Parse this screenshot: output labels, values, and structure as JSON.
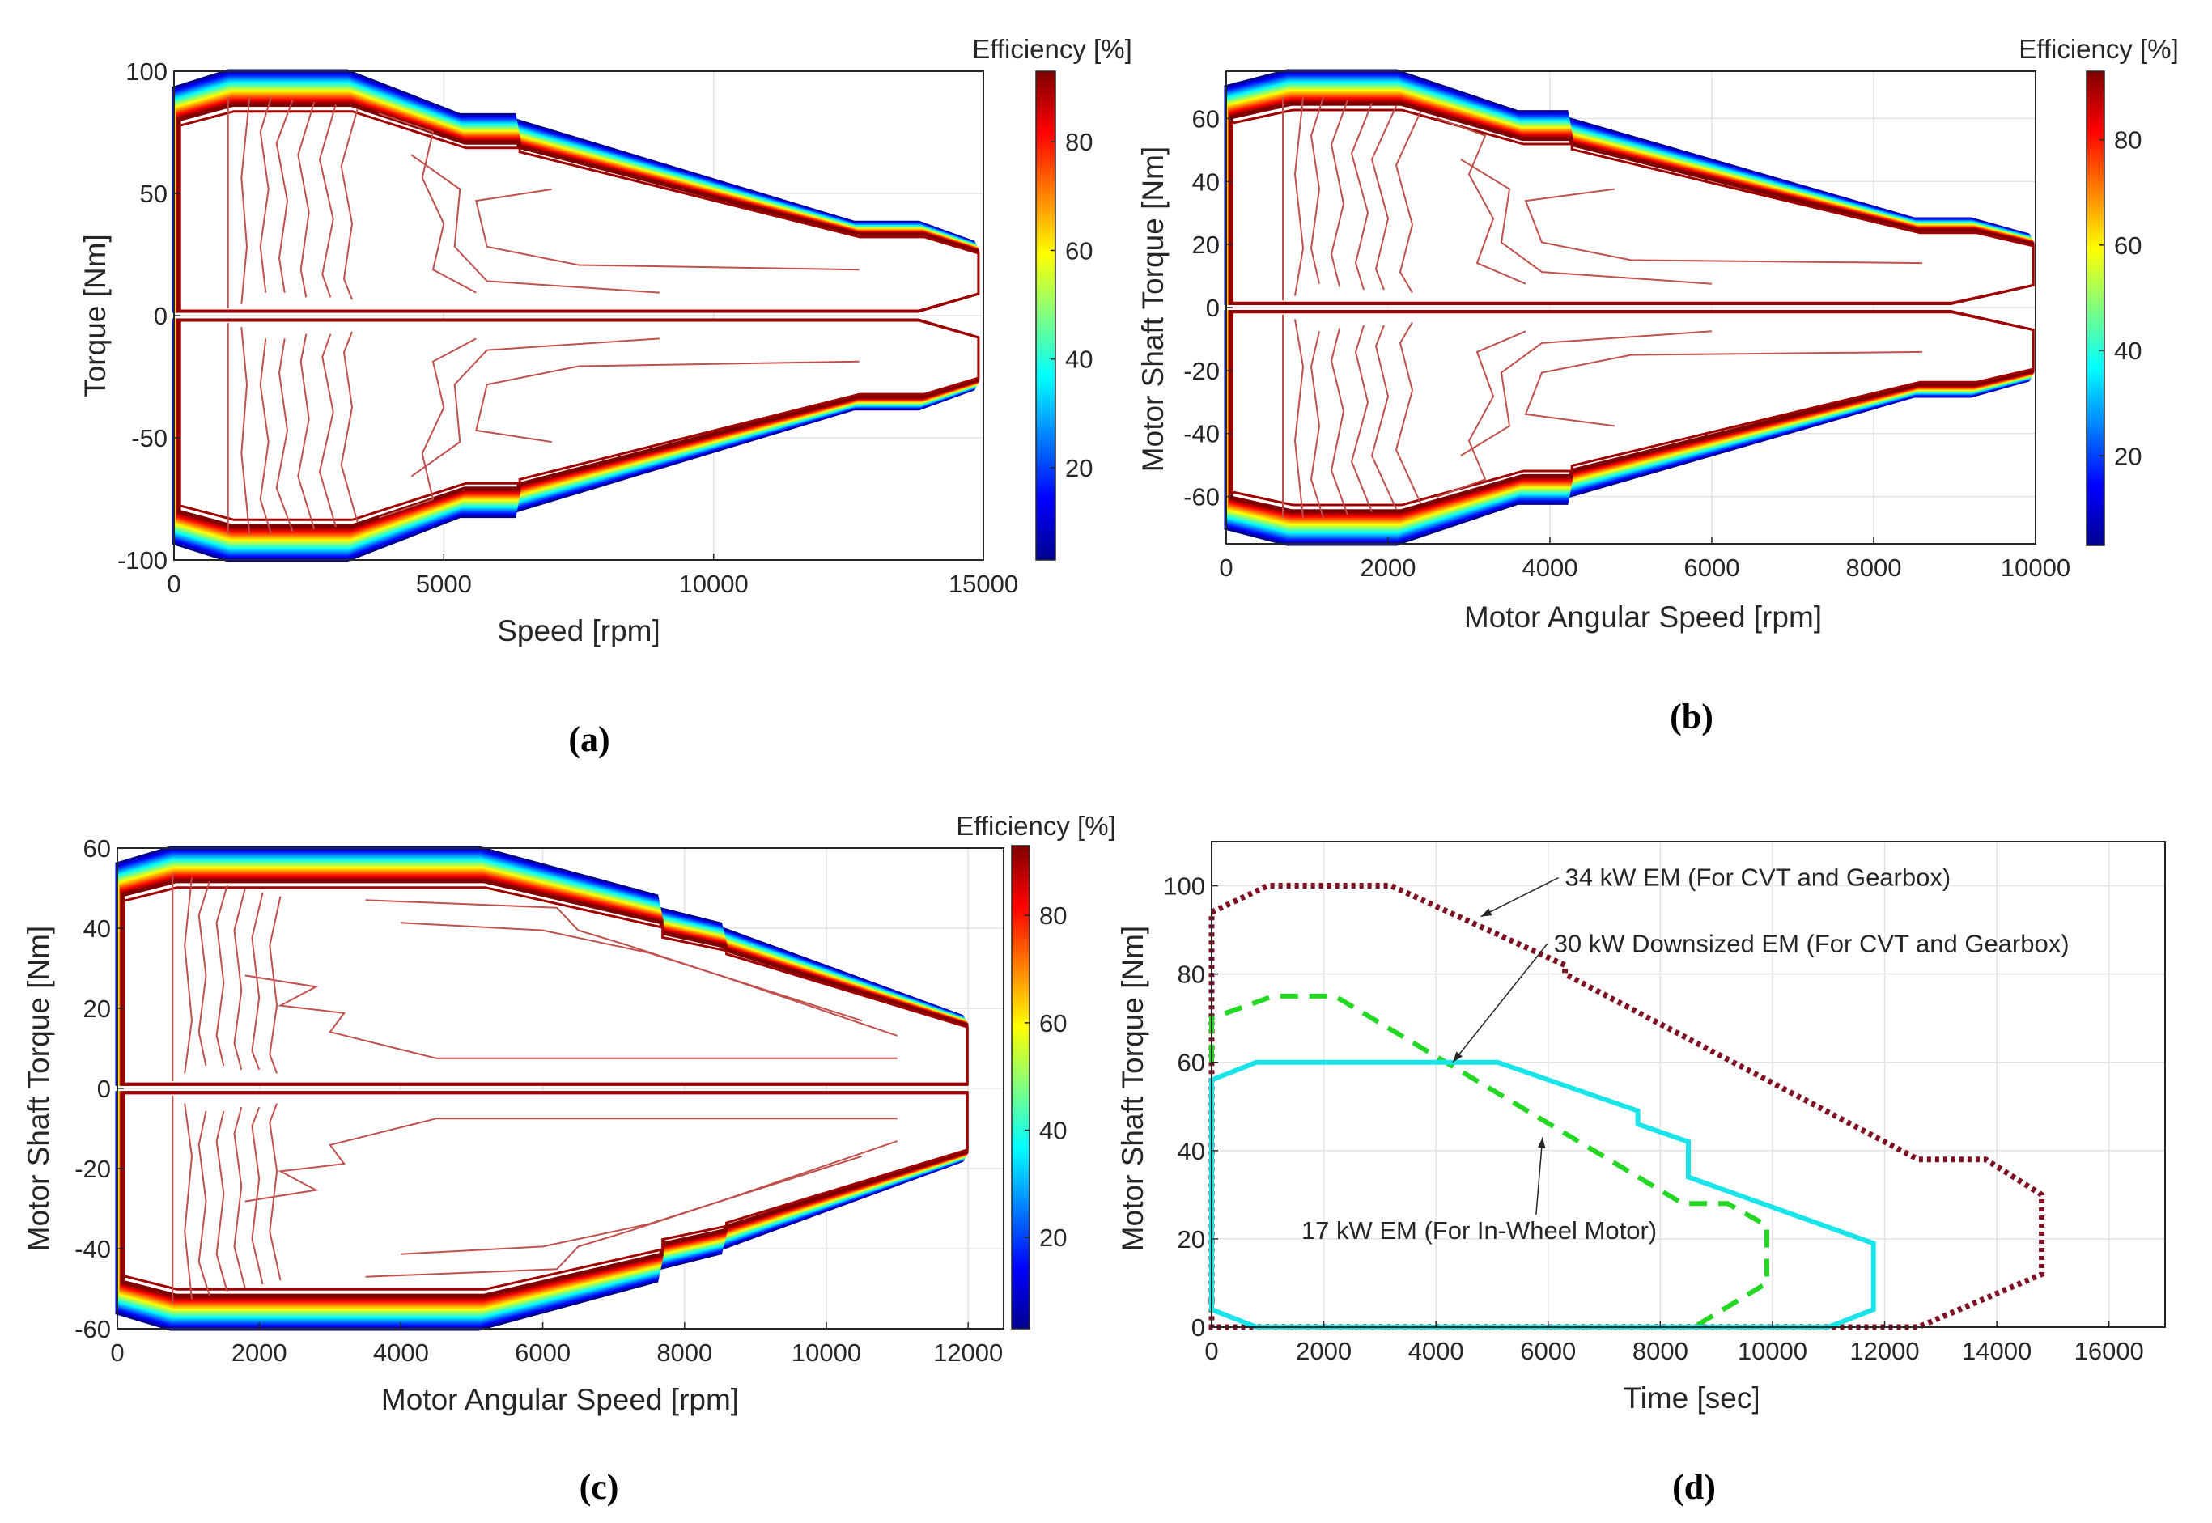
{
  "chart_data": [
    {
      "type": "heatmap",
      "subtype": "efficiency-map",
      "caption": "(a)",
      "xlabel": "Speed [rpm]",
      "ylabel": "Torque [Nm]",
      "xlim": [
        0,
        15000
      ],
      "ylim": [
        -100,
        100
      ],
      "xticks": [
        "0",
        "5000",
        "10000",
        "15000"
      ],
      "yticks": [
        "-100",
        "-50",
        "0",
        "50",
        "100"
      ],
      "grid": true,
      "colorbar": {
        "title": "Efficiency [%]",
        "range": [
          3,
          93
        ],
        "ticks": [
          "20",
          "40",
          "60",
          "80"
        ]
      },
      "envelope": [
        [
          0,
          93
        ],
        [
          1000,
          100
        ],
        [
          3200,
          100
        ],
        [
          5300,
          82
        ],
        [
          6300,
          82
        ],
        [
          6300,
          80
        ],
        [
          12600,
          38
        ],
        [
          13800,
          38
        ],
        [
          14800,
          30
        ],
        [
          14800,
          10
        ],
        [
          13700,
          0
        ]
      ],
      "contours": [
        [
          [
            1000,
            95
          ],
          [
            1000,
            45
          ],
          [
            1000,
            0
          ]
        ],
        [
          [
            1400,
            95
          ],
          [
            1250,
            60
          ],
          [
            1350,
            30
          ],
          [
            1250,
            5
          ]
        ],
        [
          [
            1800,
            95
          ],
          [
            1600,
            80
          ],
          [
            1750,
            55
          ],
          [
            1600,
            30
          ],
          [
            1700,
            10
          ]
        ],
        [
          [
            2200,
            94
          ],
          [
            1900,
            75
          ],
          [
            2100,
            50
          ],
          [
            1950,
            25
          ],
          [
            2050,
            10
          ]
        ],
        [
          [
            2600,
            93
          ],
          [
            2300,
            70
          ],
          [
            2500,
            45
          ],
          [
            2350,
            20
          ],
          [
            2450,
            8
          ]
        ],
        [
          [
            3000,
            92
          ],
          [
            2700,
            68
          ],
          [
            2950,
            42
          ],
          [
            2750,
            18
          ],
          [
            2900,
            8
          ]
        ],
        [
          [
            3400,
            90
          ],
          [
            3100,
            65
          ],
          [
            3300,
            40
          ],
          [
            3150,
            16
          ],
          [
            3300,
            7
          ]
        ],
        [
          [
            3800,
            88
          ],
          [
            4800,
            80
          ],
          [
            4600,
            60
          ],
          [
            5000,
            40
          ],
          [
            4800,
            20
          ],
          [
            5600,
            10
          ]
        ],
        [
          [
            4400,
            70
          ],
          [
            5300,
            55
          ],
          [
            5200,
            30
          ],
          [
            5800,
            15
          ],
          [
            9000,
            10
          ]
        ],
        [
          [
            7000,
            55
          ],
          [
            5600,
            50
          ],
          [
            5800,
            30
          ],
          [
            7500,
            22
          ],
          [
            12700,
            20
          ]
        ]
      ]
    },
    {
      "type": "heatmap",
      "subtype": "efficiency-map",
      "caption": "(b)",
      "xlabel": "Motor Angular Speed [rpm]",
      "ylabel": "Motor Shaft Torque [Nm]",
      "xlim": [
        0,
        10000
      ],
      "ylim": [
        -75,
        75
      ],
      "xticks": [
        "0",
        "2000",
        "4000",
        "6000",
        "8000",
        "10000"
      ],
      "yticks": [
        "-60",
        "-40",
        "-20",
        "0",
        "20",
        "40",
        "60"
      ],
      "grid": true,
      "colorbar": {
        "title": "Efficiency [%]",
        "range": [
          3,
          93
        ],
        "ticks": [
          "20",
          "40",
          "60",
          "80"
        ]
      },
      "envelope": [
        [
          0,
          70
        ],
        [
          750,
          75
        ],
        [
          2100,
          75
        ],
        [
          3600,
          62
        ],
        [
          4200,
          62
        ],
        [
          4200,
          60
        ],
        [
          8500,
          28
        ],
        [
          9200,
          28
        ],
        [
          9900,
          23
        ],
        [
          9900,
          8
        ],
        [
          8900,
          0
        ]
      ],
      "contours": [
        [
          [
            700,
            71
          ],
          [
            700,
            35
          ],
          [
            700,
            0
          ]
        ],
        [
          [
            950,
            71
          ],
          [
            850,
            45
          ],
          [
            950,
            20
          ],
          [
            850,
            4
          ]
        ],
        [
          [
            1200,
            71
          ],
          [
            1050,
            58
          ],
          [
            1150,
            40
          ],
          [
            1050,
            20
          ],
          [
            1150,
            8
          ]
        ],
        [
          [
            1500,
            70
          ],
          [
            1300,
            55
          ],
          [
            1450,
            35
          ],
          [
            1300,
            18
          ],
          [
            1400,
            7
          ]
        ],
        [
          [
            1800,
            69
          ],
          [
            1550,
            52
          ],
          [
            1750,
            32
          ],
          [
            1600,
            15
          ],
          [
            1700,
            6
          ]
        ],
        [
          [
            2100,
            68
          ],
          [
            1800,
            50
          ],
          [
            2000,
            30
          ],
          [
            1850,
            13
          ],
          [
            1950,
            6
          ]
        ],
        [
          [
            2400,
            66
          ],
          [
            2100,
            48
          ],
          [
            2300,
            28
          ],
          [
            2150,
            12
          ],
          [
            2300,
            5
          ]
        ],
        [
          [
            2600,
            64
          ],
          [
            3200,
            58
          ],
          [
            3000,
            45
          ],
          [
            3300,
            30
          ],
          [
            3100,
            15
          ],
          [
            3700,
            8
          ]
        ],
        [
          [
            2900,
            50
          ],
          [
            3500,
            40
          ],
          [
            3400,
            22
          ],
          [
            3900,
            12
          ],
          [
            6000,
            8
          ]
        ],
        [
          [
            4800,
            40
          ],
          [
            3700,
            36
          ],
          [
            3900,
            22
          ],
          [
            5000,
            16
          ],
          [
            8600,
            15
          ]
        ]
      ]
    },
    {
      "type": "heatmap",
      "subtype": "efficiency-map",
      "caption": "(c)",
      "xlabel": "Motor Angular Speed [rpm]",
      "ylabel": "Motor Shaft Torque [Nm]",
      "xlim": [
        0,
        12500
      ],
      "ylim": [
        -60,
        60
      ],
      "xticks": [
        "0",
        "2000",
        "4000",
        "6000",
        "8000",
        "10000",
        "12000"
      ],
      "yticks": [
        "-60",
        "-40",
        "-20",
        "0",
        "20",
        "40",
        "60"
      ],
      "grid": true,
      "colorbar": {
        "title": "Efficiency [%]",
        "range": [
          3,
          93
        ],
        "ticks": [
          "20",
          "40",
          "60",
          "80"
        ]
      },
      "envelope": [
        [
          0,
          56
        ],
        [
          750,
          60
        ],
        [
          5100,
          60
        ],
        [
          7600,
          48
        ],
        [
          7600,
          45
        ],
        [
          8500,
          41
        ],
        [
          8500,
          40
        ],
        [
          11900,
          18
        ],
        [
          11900,
          0
        ]
      ],
      "contours": [
        [
          [
            780,
            57
          ],
          [
            780,
            28
          ],
          [
            780,
            0
          ]
        ],
        [
          [
            1050,
            56
          ],
          [
            950,
            38
          ],
          [
            1050,
            18
          ],
          [
            950,
            4
          ]
        ],
        [
          [
            1300,
            55
          ],
          [
            1150,
            46
          ],
          [
            1250,
            30
          ],
          [
            1150,
            15
          ],
          [
            1250,
            6
          ]
        ],
        [
          [
            1550,
            54
          ],
          [
            1400,
            44
          ],
          [
            1500,
            28
          ],
          [
            1400,
            14
          ],
          [
            1500,
            6
          ]
        ],
        [
          [
            1800,
            53
          ],
          [
            1650,
            42
          ],
          [
            1750,
            26
          ],
          [
            1650,
            12
          ],
          [
            1750,
            5
          ]
        ],
        [
          [
            2050,
            52
          ],
          [
            1900,
            40
          ],
          [
            2000,
            24
          ],
          [
            1900,
            10
          ],
          [
            2000,
            5
          ]
        ],
        [
          [
            2300,
            51
          ],
          [
            2150,
            38
          ],
          [
            2250,
            22
          ],
          [
            2150,
            9
          ],
          [
            2250,
            4
          ]
        ],
        [
          [
            3500,
            50
          ],
          [
            6200,
            48
          ],
          [
            6500,
            42
          ],
          [
            7200,
            38
          ],
          [
            8500,
            30
          ],
          [
            11000,
            14
          ]
        ],
        [
          [
            1800,
            30
          ],
          [
            2800,
            27
          ],
          [
            2300,
            22
          ],
          [
            3200,
            20
          ],
          [
            3000,
            15
          ],
          [
            4500,
            8
          ],
          [
            11000,
            8
          ]
        ],
        [
          [
            4000,
            44
          ],
          [
            6000,
            42
          ],
          [
            7500,
            36
          ],
          [
            10500,
            18
          ]
        ]
      ]
    },
    {
      "type": "line",
      "caption": "(d)",
      "xlabel": "Time [sec]",
      "ylabel": "Motor Shaft Torque [Nm]",
      "xlim": [
        0,
        17000
      ],
      "ylim": [
        0,
        110
      ],
      "xticks": [
        "0",
        "2000",
        "4000",
        "6000",
        "8000",
        "10000",
        "12000",
        "14000",
        "16000"
      ],
      "yticks": [
        "0",
        "20",
        "40",
        "60",
        "80",
        "100"
      ],
      "grid": true,
      "series": [
        {
          "name": "34 kW EM (For CVT and Gearbox)",
          "color": "#7f0f22",
          "style": "dotted",
          "x": [
            0,
            0,
            1000,
            3200,
            6300,
            6300,
            12600,
            13800,
            14800,
            14800,
            12600,
            0,
            0
          ],
          "y": [
            6,
            94,
            100,
            100,
            82,
            80,
            38,
            38,
            30,
            12,
            0,
            0,
            6
          ]
        },
        {
          "name": "30 kW Downsized EM (For CVT and Gearbox)",
          "color": "#22d822",
          "style": "dashed",
          "x": [
            0,
            0,
            1100,
            2200,
            8400,
            9200,
            9900,
            9900,
            8600
          ],
          "y": [
            60,
            70,
            75,
            75,
            28,
            28,
            23,
            10,
            0
          ]
        },
        {
          "name": "17 kW EM (For In-Wheel Motor)",
          "color": "#18e4ea",
          "style": "solid",
          "x": [
            0,
            0,
            800,
            5100,
            7600,
            7600,
            8500,
            8500,
            11800,
            11800,
            11000,
            800,
            0,
            0
          ],
          "y": [
            5,
            56,
            60,
            60,
            49,
            46,
            42,
            34,
            19,
            4,
            0,
            0,
            4,
            5
          ]
        }
      ],
      "annotations": [
        {
          "text": "34 kW EM (For CVT and Gearbox)",
          "x": 6300,
          "y": 100,
          "arrow_to": [
            4800,
            93
          ]
        },
        {
          "text": "30 kW Downsized EM (For CVT and Gearbox)",
          "x": 6100,
          "y": 85,
          "arrow_to": [
            4300,
            60
          ]
        },
        {
          "text": "17 kW EM (For In-Wheel Motor)",
          "x": 1600,
          "y": 20,
          "arrow_to": [
            5900,
            43
          ]
        }
      ]
    }
  ]
}
